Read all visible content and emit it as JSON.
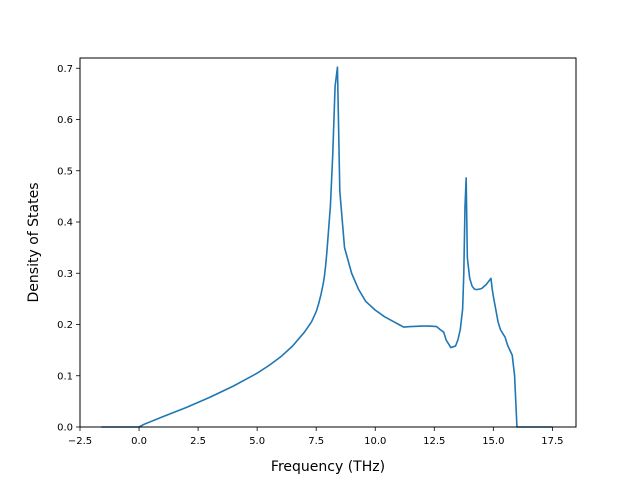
{
  "chart_data": {
    "type": "line",
    "title": "",
    "xlabel": "Frequency (THz)",
    "ylabel": "Density of States",
    "xlim": [
      -2.5,
      18.5
    ],
    "ylim": [
      0.0,
      0.72
    ],
    "grid": false,
    "legend": "none",
    "x_ticks": [
      -2.5,
      0.0,
      2.5,
      5.0,
      7.5,
      10.0,
      12.5,
      15.0,
      17.5
    ],
    "x_tick_labels": [
      "−2.5",
      "0.0",
      "2.5",
      "5.0",
      "7.5",
      "10.0",
      "12.5",
      "15.0",
      "17.5"
    ],
    "y_ticks": [
      0.0,
      0.1,
      0.2,
      0.3,
      0.4,
      0.5,
      0.6,
      0.7
    ],
    "y_tick_labels": [
      "0.0",
      "0.1",
      "0.2",
      "0.3",
      "0.4",
      "0.5",
      "0.6",
      "0.7"
    ],
    "series": [
      {
        "color": "#1f77b4",
        "x": [
          -1.6,
          0.0,
          0.2,
          1.0,
          2.0,
          3.0,
          4.0,
          5.0,
          5.5,
          6.0,
          6.5,
          7.0,
          7.3,
          7.5,
          7.6,
          7.7,
          7.8,
          7.85,
          7.9,
          7.95,
          8.0,
          8.1,
          8.2,
          8.3,
          8.4,
          8.5,
          8.7,
          9.0,
          9.3,
          9.6,
          10.0,
          10.4,
          10.8,
          11.0,
          11.2,
          11.5,
          12.0,
          12.3,
          12.6,
          12.75,
          12.9,
          13.0,
          13.2,
          13.4,
          13.5,
          13.6,
          13.7,
          13.75,
          13.8,
          13.85,
          13.9,
          14.0,
          14.1,
          14.2,
          14.3,
          14.5,
          14.7,
          14.9,
          14.95,
          15.0,
          15.1,
          15.2,
          15.3,
          15.5,
          15.6,
          15.8,
          15.9,
          15.95,
          16.0,
          16.05,
          16.1,
          17.5
        ],
        "y": [
          0.0,
          0.0,
          0.005,
          0.02,
          0.038,
          0.058,
          0.08,
          0.105,
          0.12,
          0.137,
          0.158,
          0.185,
          0.205,
          0.225,
          0.24,
          0.258,
          0.28,
          0.295,
          0.315,
          0.34,
          0.37,
          0.43,
          0.53,
          0.665,
          0.702,
          0.46,
          0.35,
          0.3,
          0.268,
          0.245,
          0.228,
          0.215,
          0.205,
          0.2,
          0.195,
          0.196,
          0.197,
          0.197,
          0.196,
          0.19,
          0.185,
          0.17,
          0.155,
          0.158,
          0.17,
          0.19,
          0.23,
          0.3,
          0.43,
          0.486,
          0.33,
          0.29,
          0.275,
          0.269,
          0.268,
          0.27,
          0.278,
          0.29,
          0.27,
          0.255,
          0.23,
          0.205,
          0.19,
          0.175,
          0.16,
          0.14,
          0.1,
          0.05,
          0.0,
          0.0,
          0.0,
          0.0
        ]
      }
    ]
  }
}
